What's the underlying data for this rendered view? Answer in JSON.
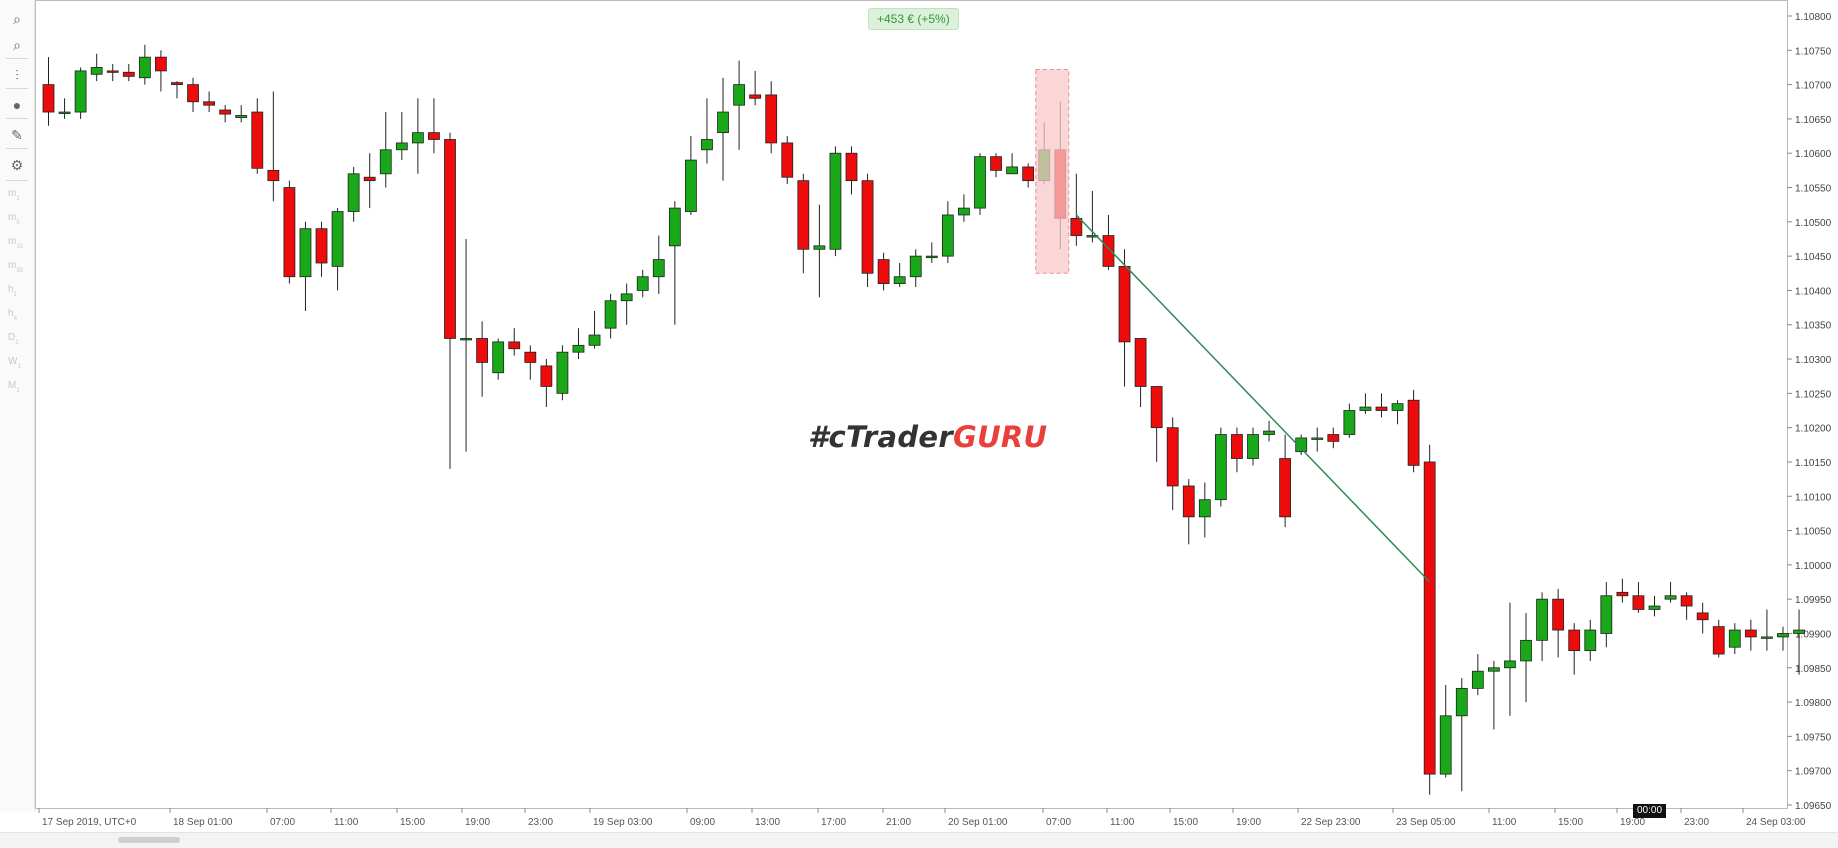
{
  "toolbar": {
    "tools": [
      {
        "name": "zoom-in-icon",
        "glyph": "⌕"
      },
      {
        "name": "zoom-out-icon",
        "glyph": "⌕"
      },
      {
        "name": "indicators-icon",
        "glyph": "⫶"
      },
      {
        "name": "social-icon",
        "glyph": "●"
      },
      {
        "name": "drawing-tools-icon",
        "glyph": "✎"
      },
      {
        "name": "chart-settings-icon",
        "glyph": "⚙"
      }
    ],
    "timeframes": [
      {
        "label": "m",
        "sub": "1"
      },
      {
        "label": "m",
        "sub": "5"
      },
      {
        "label": "m",
        "sub": "15"
      },
      {
        "label": "m",
        "sub": "30"
      },
      {
        "label": "h",
        "sub": "1"
      },
      {
        "label": "h",
        "sub": "4"
      },
      {
        "label": "D",
        "sub": "1"
      },
      {
        "label": "W",
        "sub": "1"
      },
      {
        "label": "M",
        "sub": "1"
      }
    ]
  },
  "pnl_badge": "+453 € (+5%)",
  "watermark": {
    "part1": "#cTrader",
    "part2": "GURU"
  },
  "time_badge": "00:00",
  "colors": {
    "bull": "#18a818",
    "bear": "#ee0b0b",
    "highlight_fill": "#f8c8c8",
    "highlight_stroke": "#e89090",
    "trend_line": "#2e8b57",
    "grid_axis": "#bbbbbb"
  },
  "chart_data": {
    "type": "candlestick",
    "symbol_timezone_label": "17 Sep 2019, UTC+0",
    "x_tick_labels": [
      "17 Sep 2019, UTC+0",
      "18 Sep 01:00",
      "07:00",
      "11:00",
      "15:00",
      "19:00",
      "23:00",
      "19 Sep 03:00",
      "09:00",
      "13:00",
      "17:00",
      "21:00",
      "20 Sep 01:00",
      "07:00",
      "11:00",
      "15:00",
      "19:00",
      "22 Sep 23:00",
      "23 Sep 05:00",
      "11:00",
      "15:00",
      "19:00",
      "23:00",
      "24 Sep 03:00"
    ],
    "y_tick_labels": [
      "1.10800",
      "1.10750",
      "1.10700",
      "1.10650",
      "1.10600",
      "1.10550",
      "1.10500",
      "1.10450",
      "1.10400",
      "1.10350",
      "1.10300",
      "1.10250",
      "1.10200",
      "1.10150",
      "1.10100",
      "1.10050",
      "1.10000",
      "1.09950",
      "1.09900",
      "1.09850",
      "1.09800",
      "1.09750",
      "1.09700",
      "1.09650"
    ],
    "ylim": [
      1.09645,
      1.10815
    ],
    "candles": [
      [
        1.107,
        1.1066,
        1.1074,
        1.1064
      ],
      [
        1.1066,
        1.1066,
        1.1068,
        1.1065
      ],
      [
        1.1066,
        1.1072,
        1.10725,
        1.1065
      ],
      [
        1.10715,
        1.10725,
        1.10745,
        1.10705
      ],
      [
        1.1072,
        1.10718,
        1.1073,
        1.10705
      ],
      [
        1.10718,
        1.10712,
        1.1073,
        1.10705
      ],
      [
        1.1071,
        1.1074,
        1.10758,
        1.107
      ],
      [
        1.1074,
        1.1072,
        1.1075,
        1.1069
      ],
      [
        1.10703,
        1.107,
        1.10705,
        1.1068
      ],
      [
        1.107,
        1.10675,
        1.1071,
        1.1066
      ],
      [
        1.10675,
        1.1067,
        1.1069,
        1.1066
      ],
      [
        1.10663,
        1.10657,
        1.1067,
        1.10645
      ],
      [
        1.10652,
        1.10655,
        1.1067,
        1.10645
      ],
      [
        1.1066,
        1.10578,
        1.1068,
        1.1057
      ],
      [
        1.10575,
        1.1056,
        1.1069,
        1.1053
      ],
      [
        1.1055,
        1.1042,
        1.1056,
        1.1041
      ],
      [
        1.1042,
        1.1049,
        1.105,
        1.1037
      ],
      [
        1.1049,
        1.1044,
        1.105,
        1.1042
      ],
      [
        1.10435,
        1.10515,
        1.1052,
        1.104
      ],
      [
        1.10515,
        1.1057,
        1.1058,
        1.105
      ],
      [
        1.10565,
        1.1056,
        1.106,
        1.1052
      ],
      [
        1.1057,
        1.10605,
        1.1066,
        1.1055
      ],
      [
        1.10605,
        1.10615,
        1.1066,
        1.1059
      ],
      [
        1.10615,
        1.1063,
        1.1068,
        1.1057
      ],
      [
        1.1063,
        1.1062,
        1.1068,
        1.106
      ],
      [
        1.1062,
        1.1033,
        1.1063,
        1.1014
      ],
      [
        1.1033,
        1.1033,
        1.10475,
        1.10165
      ],
      [
        1.1033,
        1.10295,
        1.10355,
        1.10245
      ],
      [
        1.1028,
        1.10325,
        1.1033,
        1.1027
      ],
      [
        1.10325,
        1.10315,
        1.10345,
        1.10305
      ],
      [
        1.1031,
        1.10295,
        1.1032,
        1.1027
      ],
      [
        1.1029,
        1.1026,
        1.103,
        1.1023
      ],
      [
        1.1025,
        1.1031,
        1.1032,
        1.1024
      ],
      [
        1.1031,
        1.1032,
        1.10345,
        1.103
      ],
      [
        1.1032,
        1.10335,
        1.1037,
        1.10315
      ],
      [
        1.10345,
        1.10385,
        1.10395,
        1.1033
      ],
      [
        1.10385,
        1.10395,
        1.1041,
        1.1035
      ],
      [
        1.104,
        1.1042,
        1.1043,
        1.1039
      ],
      [
        1.1042,
        1.10445,
        1.1048,
        1.10395
      ],
      [
        1.10465,
        1.1052,
        1.1053,
        1.1035
      ],
      [
        1.10515,
        1.1059,
        1.10625,
        1.1051
      ],
      [
        1.10605,
        1.1062,
        1.1068,
        1.10585
      ],
      [
        1.1063,
        1.1066,
        1.1071,
        1.1056
      ],
      [
        1.1067,
        1.107,
        1.10735,
        1.10605
      ],
      [
        1.10685,
        1.1068,
        1.1072,
        1.1067
      ],
      [
        1.10685,
        1.10615,
        1.10705,
        1.106
      ],
      [
        1.10615,
        1.10565,
        1.10625,
        1.10555
      ],
      [
        1.1056,
        1.1046,
        1.1057,
        1.10425
      ],
      [
        1.1046,
        1.10465,
        1.10525,
        1.1039
      ],
      [
        1.1046,
        1.106,
        1.1061,
        1.1045
      ],
      [
        1.106,
        1.1056,
        1.1061,
        1.1054
      ],
      [
        1.1056,
        1.10425,
        1.1057,
        1.10405
      ],
      [
        1.10445,
        1.1041,
        1.10455,
        1.104
      ],
      [
        1.1041,
        1.1042,
        1.1044,
        1.10405
      ],
      [
        1.1042,
        1.1045,
        1.1046,
        1.10405
      ],
      [
        1.1045,
        1.1045,
        1.1047,
        1.1044
      ],
      [
        1.1045,
        1.1051,
        1.1053,
        1.1044
      ],
      [
        1.1051,
        1.1052,
        1.1054,
        1.105
      ],
      [
        1.1052,
        1.10595,
        1.106,
        1.1051
      ],
      [
        1.10595,
        1.10575,
        1.106,
        1.10565
      ],
      [
        1.1057,
        1.1058,
        1.106,
        1.1057
      ],
      [
        1.1058,
        1.1056,
        1.10585,
        1.1055
      ],
      [
        1.1056,
        1.10605,
        1.10645,
        1.10555
      ],
      [
        1.10605,
        1.10505,
        1.10675,
        1.1046
      ],
      [
        1.10505,
        1.1048,
        1.1057,
        1.10465
      ],
      [
        1.1048,
        1.1048,
        1.10545,
        1.1047
      ],
      [
        1.1048,
        1.10435,
        1.1051,
        1.1043
      ],
      [
        1.10435,
        1.10325,
        1.1046,
        1.1026
      ],
      [
        1.1033,
        1.1026,
        1.10325,
        1.1023
      ],
      [
        1.1026,
        1.102,
        1.1026,
        1.1015
      ],
      [
        1.102,
        1.10115,
        1.10215,
        1.1008
      ],
      [
        1.10115,
        1.1007,
        1.10125,
        1.1003
      ],
      [
        1.1007,
        1.10095,
        1.1012,
        1.1004
      ],
      [
        1.10095,
        1.1019,
        1.102,
        1.10085
      ],
      [
        1.1019,
        1.10155,
        1.102,
        1.10135
      ],
      [
        1.10155,
        1.1019,
        1.102,
        1.10145
      ],
      [
        1.1019,
        1.10195,
        1.1021,
        1.1018
      ],
      [
        1.10155,
        1.1007,
        1.1019,
        1.10055
      ],
      [
        1.10165,
        1.10185,
        1.1019,
        1.1016
      ],
      [
        1.10185,
        1.10185,
        1.102,
        1.10165
      ],
      [
        1.1019,
        1.1018,
        1.102,
        1.1017
      ],
      [
        1.1019,
        1.10225,
        1.10235,
        1.10185
      ],
      [
        1.10225,
        1.1023,
        1.1025,
        1.1022
      ],
      [
        1.1023,
        1.10225,
        1.1025,
        1.10215
      ],
      [
        1.10225,
        1.10235,
        1.1024,
        1.10205
      ],
      [
        1.1024,
        1.10145,
        1.10255,
        1.10135
      ],
      [
        1.1015,
        1.09695,
        1.10175,
        1.09665
      ],
      [
        1.09695,
        1.0978,
        1.09825,
        1.0969
      ],
      [
        1.0978,
        1.0982,
        1.09835,
        1.0967
      ],
      [
        1.0982,
        1.09845,
        1.0987,
        1.0981
      ],
      [
        1.09845,
        1.0985,
        1.0986,
        1.0976
      ],
      [
        1.0985,
        1.0986,
        1.09945,
        1.0978
      ],
      [
        1.0986,
        1.0989,
        1.0993,
        1.098
      ],
      [
        1.0989,
        1.0995,
        1.0996,
        1.0986
      ],
      [
        1.0995,
        1.09905,
        1.09965,
        1.09865
      ],
      [
        1.09905,
        1.09875,
        1.09915,
        1.0984
      ],
      [
        1.09875,
        1.09905,
        1.0992,
        1.0986
      ],
      [
        1.099,
        1.09955,
        1.09975,
        1.0988
      ],
      [
        1.0996,
        1.09955,
        1.0998,
        1.09945
      ],
      [
        1.09955,
        1.09935,
        1.09975,
        1.0993
      ],
      [
        1.09935,
        1.0994,
        1.09955,
        1.09925
      ],
      [
        1.0995,
        1.09955,
        1.09975,
        1.09945
      ],
      [
        1.09955,
        1.0994,
        1.0996,
        1.0992
      ],
      [
        1.0993,
        1.0992,
        1.09945,
        1.099
      ],
      [
        1.0991,
        1.0987,
        1.0992,
        1.09865
      ],
      [
        1.0988,
        1.09905,
        1.09915,
        1.0987
      ],
      [
        1.09905,
        1.09895,
        1.0992,
        1.09875
      ],
      [
        1.09895,
        1.09895,
        1.09935,
        1.09875
      ],
      [
        1.09895,
        1.099,
        1.0991,
        1.09875
      ],
      [
        1.099,
        1.09905,
        1.09935,
        1.0984
      ]
    ]
  }
}
